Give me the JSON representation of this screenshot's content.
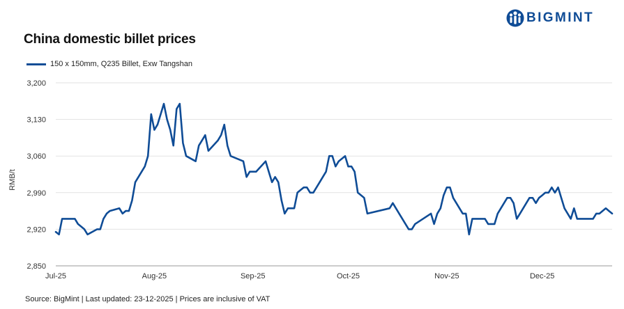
{
  "brand": {
    "name": "BIGMINT",
    "logo_icon": "people-icon",
    "color": "#0f4c96"
  },
  "footer": "Source: BigMint | Last updated: 23-12-2025 | Prices are inclusive of VAT",
  "chart_data": {
    "type": "line",
    "title": "China domestic billet prices",
    "ylabel": "RMB/t",
    "xlabel": "",
    "ylim": [
      2850,
      3200
    ],
    "yticks": [
      2850,
      2920,
      2990,
      3060,
      3130,
      3200
    ],
    "ytick_labels": [
      "2,850",
      "2,920",
      "2,990",
      "3,060",
      "3,130",
      "3,200"
    ],
    "xlim": [
      "2025-07-01",
      "2025-12-23"
    ],
    "xticks": [
      {
        "date": "2025-07-01",
        "label": "Jul-25"
      },
      {
        "date": "2025-08-01",
        "label": "Aug-25"
      },
      {
        "date": "2025-09-01",
        "label": "Sep-25"
      },
      {
        "date": "2025-10-01",
        "label": "Oct-25"
      },
      {
        "date": "2025-11-01",
        "label": "Nov-25"
      },
      {
        "date": "2025-12-01",
        "label": "Dec-25"
      }
    ],
    "grid": "horizontal",
    "legend_position": "top-left",
    "series": [
      {
        "name": "150 x 150mm, Q235 Billet, Exw Tangshan",
        "color": "#0f4c96",
        "points": [
          [
            "2025-07-01",
            2915
          ],
          [
            "2025-07-02",
            2910
          ],
          [
            "2025-07-03",
            2940
          ],
          [
            "2025-07-04",
            2940
          ],
          [
            "2025-07-07",
            2940
          ],
          [
            "2025-07-08",
            2930
          ],
          [
            "2025-07-09",
            2925
          ],
          [
            "2025-07-10",
            2920
          ],
          [
            "2025-07-11",
            2910
          ],
          [
            "2025-07-14",
            2920
          ],
          [
            "2025-07-15",
            2920
          ],
          [
            "2025-07-16",
            2940
          ],
          [
            "2025-07-17",
            2950
          ],
          [
            "2025-07-18",
            2955
          ],
          [
            "2025-07-21",
            2960
          ],
          [
            "2025-07-22",
            2950
          ],
          [
            "2025-07-23",
            2955
          ],
          [
            "2025-07-24",
            2955
          ],
          [
            "2025-07-25",
            2975
          ],
          [
            "2025-07-26",
            3010
          ],
          [
            "2025-07-29",
            3040
          ],
          [
            "2025-07-30",
            3060
          ],
          [
            "2025-07-31",
            3140
          ],
          [
            "2025-08-01",
            3110
          ],
          [
            "2025-08-02",
            3120
          ],
          [
            "2025-08-04",
            3160
          ],
          [
            "2025-08-05",
            3130
          ],
          [
            "2025-08-06",
            3110
          ],
          [
            "2025-08-07",
            3080
          ],
          [
            "2025-08-08",
            3150
          ],
          [
            "2025-08-09",
            3160
          ],
          [
            "2025-08-10",
            3085
          ],
          [
            "2025-08-11",
            3060
          ],
          [
            "2025-08-14",
            3050
          ],
          [
            "2025-08-15",
            3080
          ],
          [
            "2025-08-16",
            3090
          ],
          [
            "2025-08-17",
            3100
          ],
          [
            "2025-08-18",
            3070
          ],
          [
            "2025-08-21",
            3090
          ],
          [
            "2025-08-22",
            3100
          ],
          [
            "2025-08-23",
            3120
          ],
          [
            "2025-08-24",
            3080
          ],
          [
            "2025-08-25",
            3060
          ],
          [
            "2025-08-29",
            3050
          ],
          [
            "2025-08-30",
            3020
          ],
          [
            "2025-08-31",
            3030
          ],
          [
            "2025-09-02",
            3030
          ],
          [
            "2025-09-05",
            3050
          ],
          [
            "2025-09-06",
            3030
          ],
          [
            "2025-09-07",
            3010
          ],
          [
            "2025-09-08",
            3020
          ],
          [
            "2025-09-09",
            3010
          ],
          [
            "2025-09-10",
            2975
          ],
          [
            "2025-09-11",
            2950
          ],
          [
            "2025-09-12",
            2960
          ],
          [
            "2025-09-14",
            2960
          ],
          [
            "2025-09-15",
            2990
          ],
          [
            "2025-09-16",
            2995
          ],
          [
            "2025-09-17",
            3000
          ],
          [
            "2025-09-18",
            3000
          ],
          [
            "2025-09-19",
            2990
          ],
          [
            "2025-09-20",
            2990
          ],
          [
            "2025-09-22",
            3010
          ],
          [
            "2025-09-23",
            3020
          ],
          [
            "2025-09-24",
            3030
          ],
          [
            "2025-09-25",
            3060
          ],
          [
            "2025-09-26",
            3060
          ],
          [
            "2025-09-27",
            3040
          ],
          [
            "2025-09-28",
            3050
          ],
          [
            "2025-09-30",
            3060
          ],
          [
            "2025-10-01",
            3040
          ],
          [
            "2025-10-02",
            3040
          ],
          [
            "2025-10-03",
            3030
          ],
          [
            "2025-10-04",
            2990
          ],
          [
            "2025-10-06",
            2980
          ],
          [
            "2025-10-07",
            2950
          ],
          [
            "2025-10-14",
            2960
          ],
          [
            "2025-10-15",
            2970
          ],
          [
            "2025-10-16",
            2960
          ],
          [
            "2025-10-17",
            2950
          ],
          [
            "2025-10-20",
            2920
          ],
          [
            "2025-10-21",
            2920
          ],
          [
            "2025-10-22",
            2930
          ],
          [
            "2025-10-27",
            2950
          ],
          [
            "2025-10-28",
            2930
          ],
          [
            "2025-10-29",
            2950
          ],
          [
            "2025-10-30",
            2960
          ],
          [
            "2025-10-31",
            2985
          ],
          [
            "2025-11-01",
            3000
          ],
          [
            "2025-11-02",
            3000
          ],
          [
            "2025-11-03",
            2980
          ],
          [
            "2025-11-06",
            2950
          ],
          [
            "2025-11-07",
            2950
          ],
          [
            "2025-11-08",
            2910
          ],
          [
            "2025-11-09",
            2940
          ],
          [
            "2025-11-10",
            2940
          ],
          [
            "2025-11-13",
            2940
          ],
          [
            "2025-11-14",
            2930
          ],
          [
            "2025-11-16",
            2930
          ],
          [
            "2025-11-17",
            2950
          ],
          [
            "2025-11-18",
            2960
          ],
          [
            "2025-11-20",
            2980
          ],
          [
            "2025-11-21",
            2980
          ],
          [
            "2025-11-22",
            2970
          ],
          [
            "2025-11-23",
            2940
          ],
          [
            "2025-11-24",
            2950
          ],
          [
            "2025-11-27",
            2980
          ],
          [
            "2025-11-28",
            2980
          ],
          [
            "2025-11-29",
            2970
          ],
          [
            "2025-11-30",
            2980
          ],
          [
            "2025-12-01",
            2985
          ],
          [
            "2025-12-02",
            2990
          ],
          [
            "2025-12-03",
            2990
          ],
          [
            "2025-12-04",
            3000
          ],
          [
            "2025-12-05",
            2990
          ],
          [
            "2025-12-06",
            3000
          ],
          [
            "2025-12-07",
            2980
          ],
          [
            "2025-12-08",
            2960
          ],
          [
            "2025-12-09",
            2950
          ],
          [
            "2025-12-10",
            2940
          ],
          [
            "2025-12-11",
            2960
          ],
          [
            "2025-12-12",
            2940
          ],
          [
            "2025-12-17",
            2940
          ],
          [
            "2025-12-18",
            2950
          ],
          [
            "2025-12-19",
            2950
          ],
          [
            "2025-12-21",
            2960
          ],
          [
            "2025-12-22",
            2955
          ],
          [
            "2025-12-23",
            2950
          ]
        ]
      }
    ]
  }
}
